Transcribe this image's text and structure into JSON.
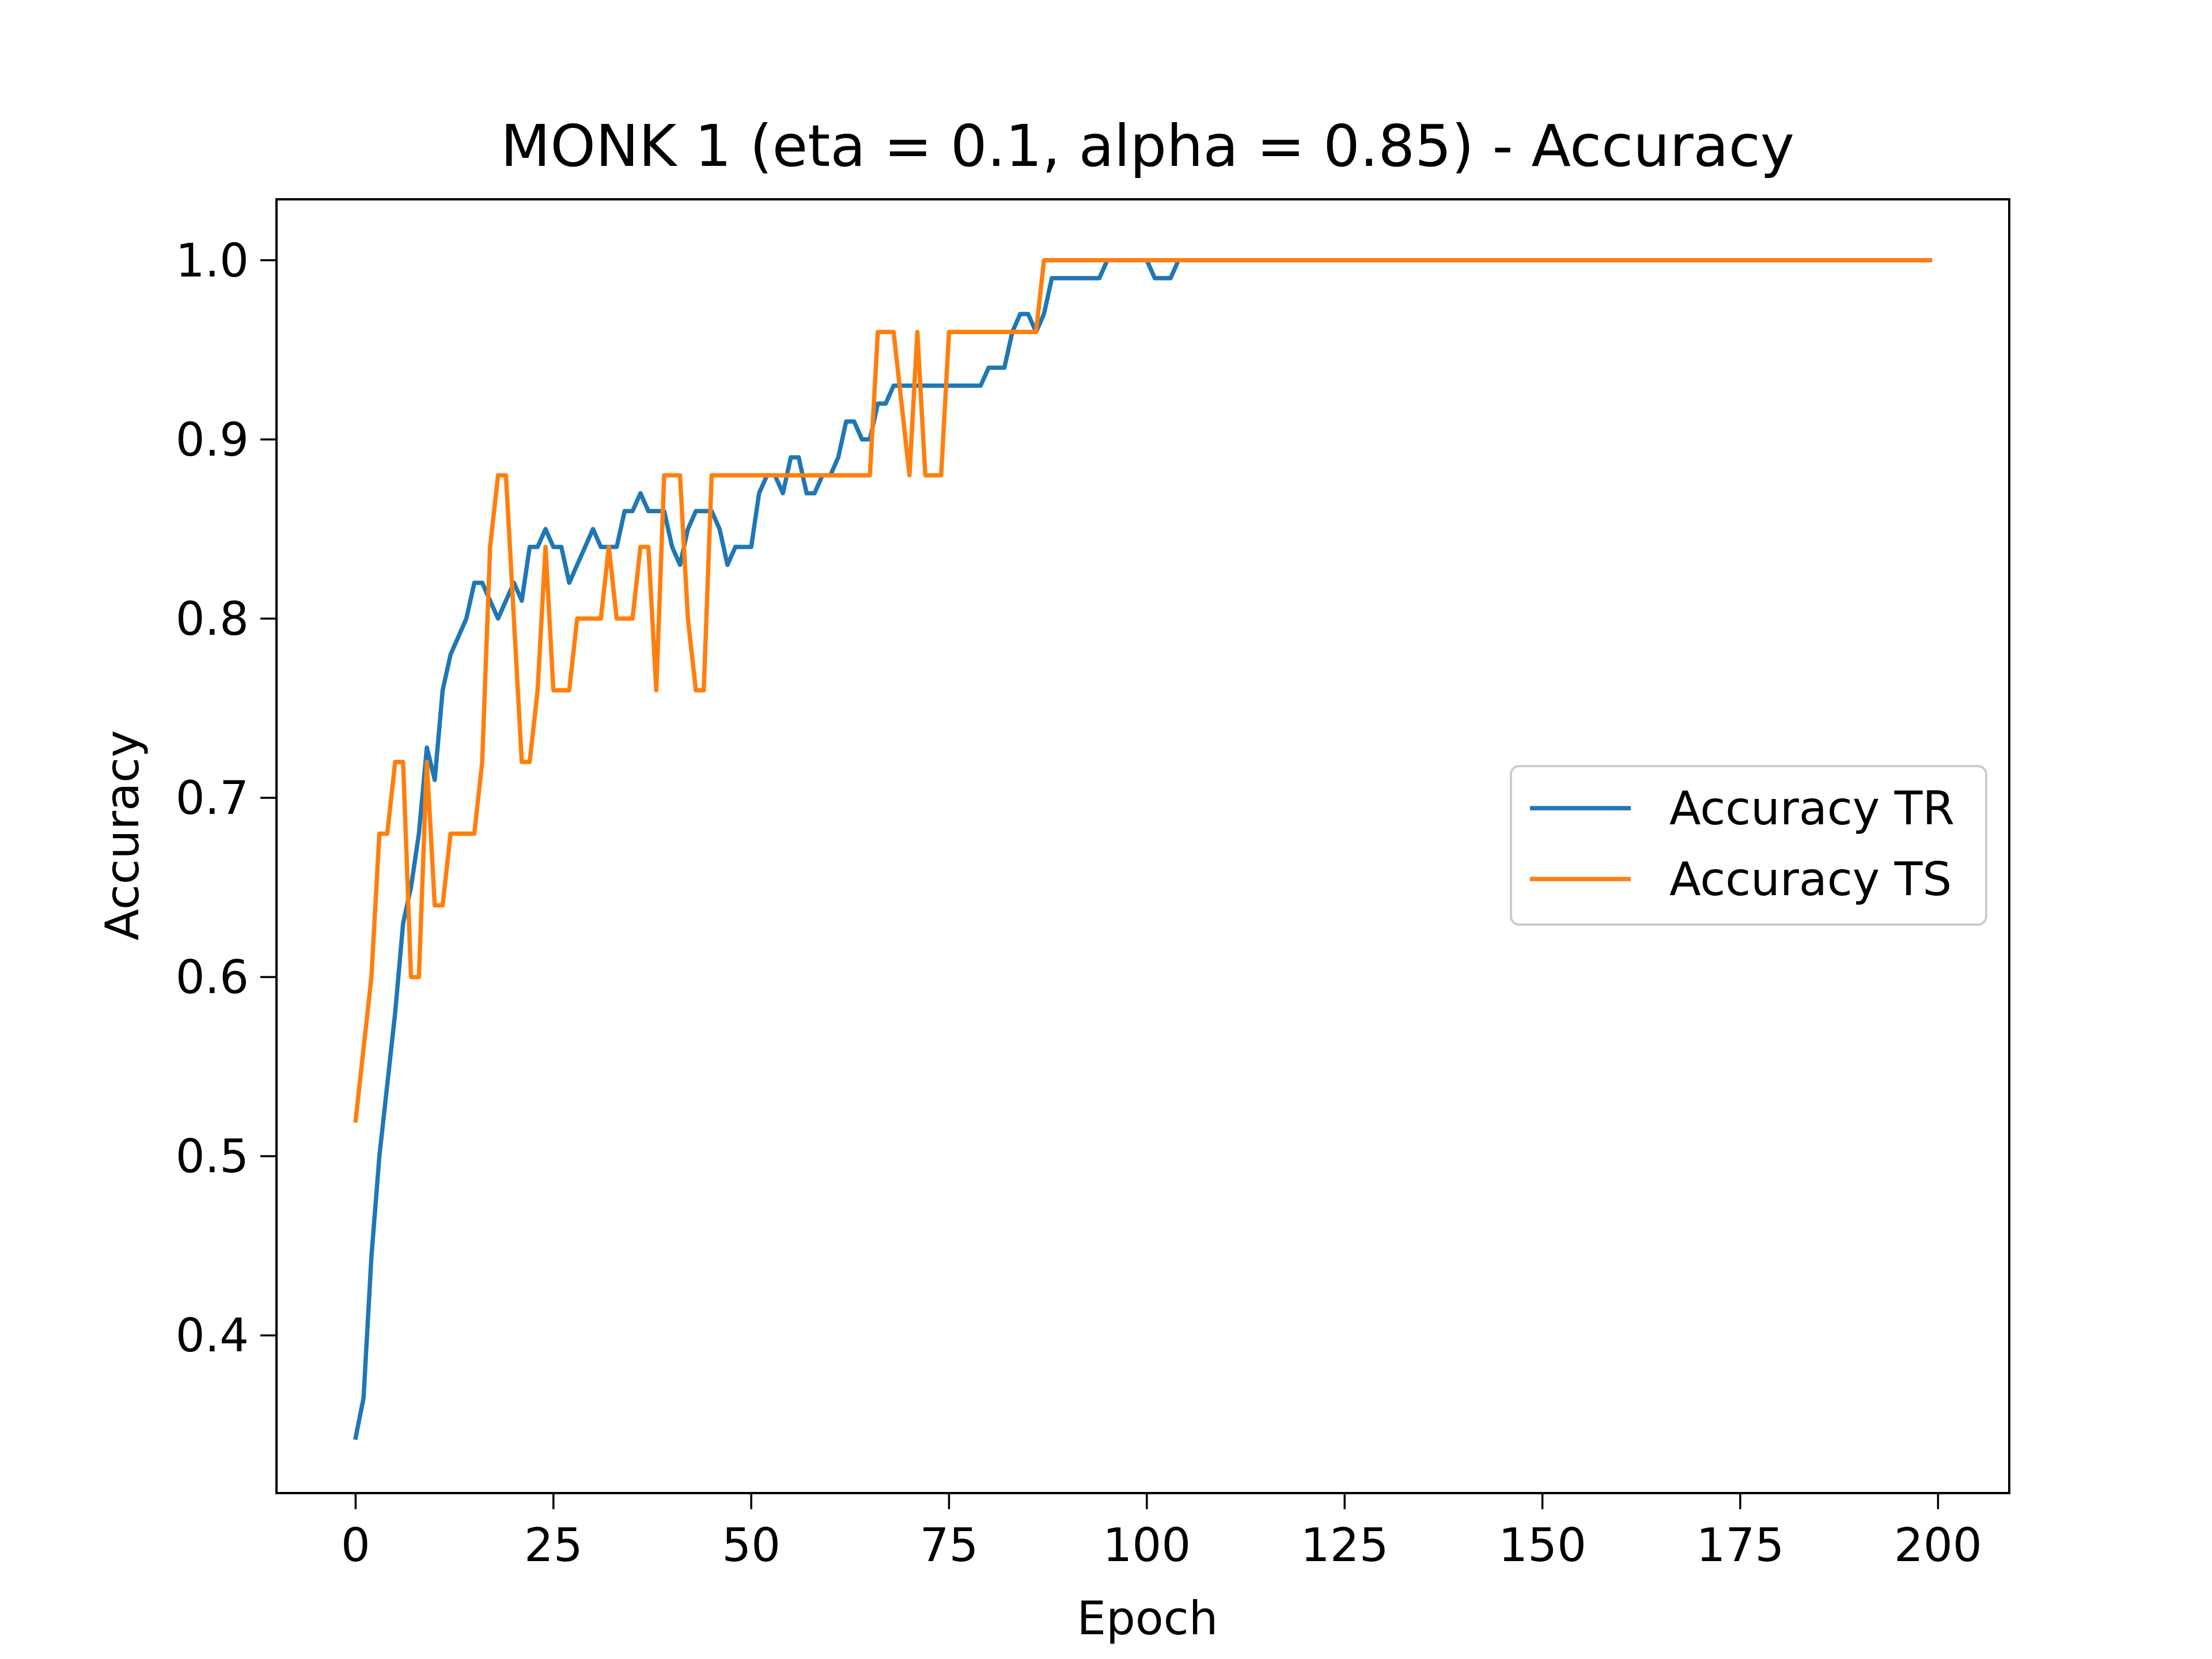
{
  "chart_data": {
    "type": "line",
    "title": "MONK 1 (eta = 0.1, alpha = 0.85) - Accuracy",
    "xlabel": "Epoch",
    "ylabel": "Accuracy",
    "xlim": [
      -10,
      209
    ],
    "ylim": [
      0.312,
      1.034
    ],
    "xticks": [
      0,
      25,
      50,
      75,
      100,
      125,
      150,
      175,
      200
    ],
    "yticks": [
      0.4,
      0.5,
      0.6,
      0.7,
      0.8,
      0.9,
      1.0
    ],
    "ytick_labels": [
      "0.4",
      "0.5",
      "0.6",
      "0.7",
      "0.8",
      "0.9",
      "1.0"
    ],
    "grid": false,
    "legend": {
      "position": "center-right",
      "entries": [
        "Accuracy TR",
        "Accuracy TS"
      ]
    },
    "series": [
      {
        "name": "Accuracy TR",
        "color": "#1f77b4",
        "x": [
          0,
          1,
          2,
          3,
          4,
          5,
          6,
          7,
          8,
          9,
          10,
          11,
          12,
          13,
          14,
          15,
          16,
          17,
          18,
          19,
          20,
          21,
          22,
          23,
          24,
          25,
          26,
          27,
          28,
          29,
          30,
          31,
          32,
          33,
          34,
          35,
          36,
          37,
          38,
          39,
          40,
          41,
          42,
          43,
          44,
          45,
          46,
          47,
          48,
          49,
          50,
          51,
          52,
          53,
          54,
          55,
          56,
          57,
          58,
          59,
          60,
          61,
          62,
          63,
          64,
          65,
          66,
          67,
          68,
          69,
          70,
          71,
          72,
          73,
          74,
          75,
          76,
          77,
          78,
          79,
          80,
          81,
          82,
          83,
          84,
          85,
          86,
          87,
          88,
          89,
          90,
          91,
          92,
          93,
          94,
          95,
          96,
          97,
          98,
          99,
          100,
          101,
          102,
          103,
          104,
          105,
          199
        ],
        "y": [
          0.343,
          0.365,
          0.444,
          0.5,
          0.54,
          0.58,
          0.63,
          0.65,
          0.68,
          0.728,
          0.71,
          0.76,
          0.78,
          0.79,
          0.8,
          0.82,
          0.82,
          0.81,
          0.8,
          0.81,
          0.82,
          0.81,
          0.84,
          0.84,
          0.85,
          0.84,
          0.84,
          0.82,
          0.83,
          0.84,
          0.85,
          0.84,
          0.84,
          0.84,
          0.86,
          0.86,
          0.87,
          0.86,
          0.86,
          0.86,
          0.84,
          0.83,
          0.85,
          0.86,
          0.86,
          0.86,
          0.85,
          0.83,
          0.84,
          0.84,
          0.84,
          0.87,
          0.88,
          0.88,
          0.87,
          0.89,
          0.89,
          0.87,
          0.87,
          0.88,
          0.88,
          0.89,
          0.91,
          0.91,
          0.9,
          0.9,
          0.92,
          0.92,
          0.93,
          0.93,
          0.93,
          0.93,
          0.93,
          0.93,
          0.93,
          0.93,
          0.93,
          0.93,
          0.93,
          0.93,
          0.94,
          0.94,
          0.94,
          0.96,
          0.97,
          0.97,
          0.96,
          0.97,
          0.99,
          0.99,
          0.99,
          0.99,
          0.99,
          0.99,
          0.99,
          1.0,
          1.0,
          1.0,
          1.0,
          1.0,
          1.0,
          0.99,
          0.99,
          0.99,
          1.0,
          1.0,
          1.0
        ]
      },
      {
        "name": "Accuracy TS",
        "color": "#ff7f0e",
        "x": [
          0,
          1,
          2,
          3,
          4,
          5,
          6,
          7,
          8,
          9,
          10,
          11,
          12,
          13,
          14,
          15,
          16,
          17,
          18,
          19,
          20,
          21,
          22,
          23,
          24,
          25,
          26,
          27,
          28,
          29,
          30,
          31,
          32,
          33,
          34,
          35,
          36,
          37,
          38,
          39,
          40,
          41,
          42,
          43,
          44,
          45,
          46,
          47,
          48,
          49,
          50,
          51,
          52,
          53,
          54,
          55,
          56,
          57,
          58,
          59,
          60,
          61,
          62,
          63,
          64,
          65,
          66,
          67,
          68,
          69,
          70,
          71,
          72,
          73,
          74,
          75,
          76,
          77,
          78,
          79,
          80,
          81,
          82,
          83,
          84,
          85,
          86,
          87,
          88,
          199
        ],
        "y": [
          0.52,
          0.56,
          0.6,
          0.68,
          0.68,
          0.72,
          0.72,
          0.6,
          0.6,
          0.72,
          0.64,
          0.64,
          0.68,
          0.68,
          0.68,
          0.68,
          0.72,
          0.84,
          0.88,
          0.88,
          0.8,
          0.72,
          0.72,
          0.76,
          0.84,
          0.76,
          0.76,
          0.76,
          0.8,
          0.8,
          0.8,
          0.8,
          0.84,
          0.8,
          0.8,
          0.8,
          0.84,
          0.84,
          0.76,
          0.88,
          0.88,
          0.88,
          0.8,
          0.76,
          0.76,
          0.88,
          0.88,
          0.88,
          0.88,
          0.88,
          0.88,
          0.88,
          0.88,
          0.88,
          0.88,
          0.88,
          0.88,
          0.88,
          0.88,
          0.88,
          0.88,
          0.88,
          0.88,
          0.88,
          0.88,
          0.88,
          0.96,
          0.96,
          0.96,
          0.92,
          0.88,
          0.96,
          0.88,
          0.88,
          0.88,
          0.96,
          0.96,
          0.96,
          0.96,
          0.96,
          0.96,
          0.96,
          0.96,
          0.96,
          0.96,
          0.96,
          0.96,
          1.0,
          1.0,
          1.0
        ]
      }
    ]
  }
}
